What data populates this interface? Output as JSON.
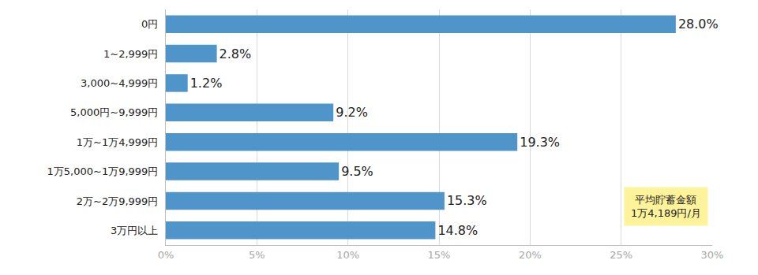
{
  "chart_data": {
    "type": "bar",
    "orientation": "horizontal",
    "categories": [
      "0円",
      "1~2,999円",
      "3,000~4,999円",
      "5,000円~9,999円",
      "1万~1万4,999円",
      "1万5,000~1万9,999円",
      "2万~2万9,999円",
      "3万円以上"
    ],
    "values": [
      28.0,
      2.8,
      1.2,
      9.2,
      19.3,
      9.5,
      15.3,
      14.8
    ],
    "value_labels": [
      "28.0%",
      "2.8%",
      "1.2%",
      "9.2%",
      "19.3%",
      "9.5%",
      "15.3%",
      "14.8%"
    ],
    "data_labels": true,
    "color": "#4f95c9",
    "xlim": [
      0,
      30
    ],
    "xticks": [
      {
        "value": 0,
        "label": "0%"
      },
      {
        "value": 5,
        "label": "5%"
      },
      {
        "value": 10,
        "label": "10%"
      },
      {
        "value": 15,
        "label": "15%"
      },
      {
        "value": 20,
        "label": "20%"
      },
      {
        "value": 25,
        "label": "25%"
      },
      {
        "value": 30,
        "label": "30%"
      }
    ],
    "grid": true,
    "annotations": [
      {
        "text": "平均貯蓄金額\n1万4,189円/月"
      }
    ]
  }
}
